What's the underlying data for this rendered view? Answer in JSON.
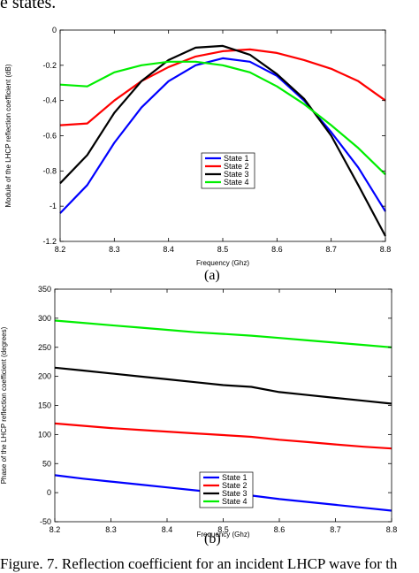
{
  "caption_top_fragment": "e states.",
  "caption_bottom_fragment": "Figure. 7. Reflection coefficient for an incident LHCP wave for th",
  "chart_data": [
    {
      "type": "line",
      "panel_label": "(a)",
      "xlabel": "Frequency (Ghz)",
      "ylabel": "Module of the LHCP reflection coefficient (dB)",
      "xlim": [
        8.2,
        8.8
      ],
      "ylim": [
        -1.2,
        0
      ],
      "x_ticks": [
        "8.2",
        "8.3",
        "8.4",
        "8.5",
        "8.6",
        "8.7",
        "8.8"
      ],
      "y_ticks": [
        "0",
        "-0.2",
        "-0.4",
        "-0.6",
        "-0.8",
        "-1",
        "-1.2"
      ],
      "grid": false,
      "legend_position": "center-right",
      "x": [
        8.2,
        8.25,
        8.3,
        8.35,
        8.4,
        8.45,
        8.5,
        8.55,
        8.6,
        8.65,
        8.7,
        8.75,
        8.8
      ],
      "series": [
        {
          "name": "State 1",
          "color": "#0000ff",
          "values": [
            -1.04,
            -0.88,
            -0.64,
            -0.44,
            -0.29,
            -0.2,
            -0.16,
            -0.18,
            -0.26,
            -0.4,
            -0.58,
            -0.78,
            -1.03
          ]
        },
        {
          "name": "State 2",
          "color": "#ff0000",
          "values": [
            -0.54,
            -0.53,
            -0.4,
            -0.29,
            -0.21,
            -0.15,
            -0.12,
            -0.11,
            -0.13,
            -0.17,
            -0.22,
            -0.29,
            -0.4
          ]
        },
        {
          "name": "State 3",
          "color": "#000000",
          "values": [
            -0.87,
            -0.71,
            -0.47,
            -0.29,
            -0.17,
            -0.1,
            -0.09,
            -0.14,
            -0.25,
            -0.39,
            -0.6,
            -0.88,
            -1.17
          ]
        },
        {
          "name": "State 4",
          "color": "#00ee00",
          "values": [
            -0.31,
            -0.32,
            -0.24,
            -0.2,
            -0.18,
            -0.18,
            -0.2,
            -0.24,
            -0.32,
            -0.42,
            -0.54,
            -0.67,
            -0.82
          ]
        }
      ]
    },
    {
      "type": "line",
      "panel_label": "(b)",
      "xlabel": "Frequency (Ghz)",
      "ylabel": "Phase of the LHCP reflection coefficient (degrees)",
      "xlim": [
        8.2,
        8.8
      ],
      "ylim": [
        -50,
        350
      ],
      "x_ticks": [
        "8.2",
        "8.3",
        "8.4",
        "8.5",
        "8.6",
        "8.7",
        "8.8"
      ],
      "y_ticks": [
        "350",
        "300",
        "250",
        "200",
        "150",
        "100",
        "50",
        "0",
        "-50"
      ],
      "grid": false,
      "legend_position": "bottom-center",
      "x": [
        8.2,
        8.25,
        8.3,
        8.35,
        8.4,
        8.45,
        8.5,
        8.55,
        8.6,
        8.65,
        8.7,
        8.75,
        8.8
      ],
      "series": [
        {
          "name": "State 1",
          "color": "#0000ff",
          "values": [
            30,
            24,
            19,
            14,
            9,
            4,
            -1,
            -5,
            -11,
            -16,
            -21,
            -26,
            -31
          ]
        },
        {
          "name": "State 2",
          "color": "#ff0000",
          "values": [
            119,
            115,
            111,
            108,
            105,
            102,
            99,
            96,
            91,
            87,
            83,
            79,
            76
          ]
        },
        {
          "name": "State 3",
          "color": "#000000",
          "values": [
            215,
            210,
            205,
            200,
            195,
            190,
            185,
            182,
            173,
            168,
            163,
            158,
            153
          ]
        },
        {
          "name": "State 4",
          "color": "#00ee00",
          "values": [
            296,
            292,
            288,
            284,
            280,
            276,
            273,
            270,
            266,
            262,
            258,
            254,
            250
          ]
        }
      ]
    }
  ]
}
